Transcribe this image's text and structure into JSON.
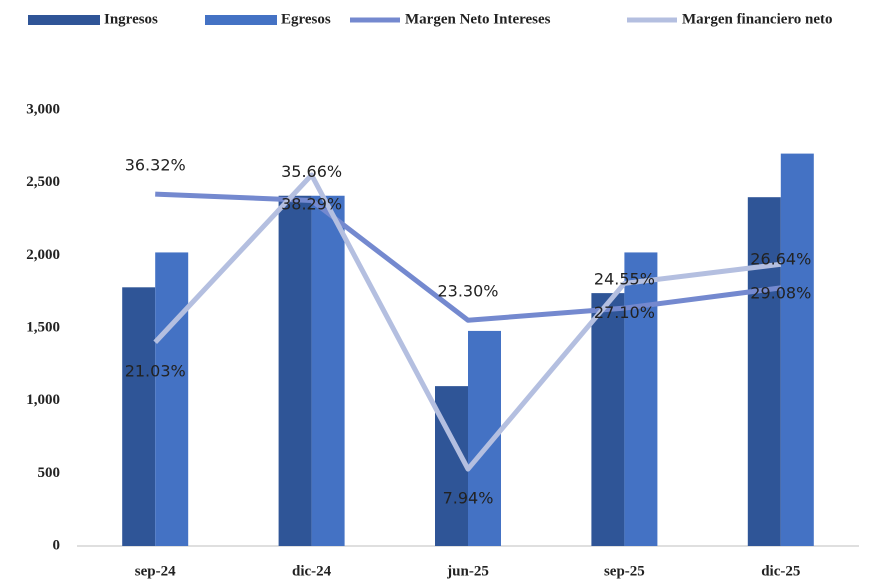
{
  "chart_data": {
    "type": "bar",
    "categories": [
      "sep-24",
      "dic-24",
      "jun-25",
      "sep-25",
      "dic-25"
    ],
    "series": [
      {
        "name": "Ingresos",
        "type": "bar",
        "color": "#2f5597",
        "values": [
          1780,
          2410,
          1100,
          1740,
          2400
        ]
      },
      {
        "name": "Egresos",
        "type": "bar",
        "color": "#4472c4",
        "values": [
          2020,
          2410,
          1480,
          2020,
          2700
        ]
      },
      {
        "name": "Margen Neto Intereses",
        "type": "line",
        "axis": "y2",
        "color": "#7489cf",
        "values": [
          36.32,
          35.66,
          23.3,
          24.55,
          26.64
        ],
        "value_labels": [
          "36.32%",
          "35.66%",
          "23.30%",
          "24.55%",
          "26.64%"
        ]
      },
      {
        "name": "Margen financiero neto",
        "type": "line",
        "axis": "y2",
        "color": "#b4bfe0",
        "values": [
          21.03,
          38.29,
          7.94,
          27.1,
          29.08
        ],
        "value_labels": [
          "21.03%",
          "38.29%",
          "7.94%",
          "27.10%",
          "29.08%"
        ]
      }
    ],
    "ylim": [
      0,
      3000
    ],
    "yticks": [
      0,
      500,
      {
        "value": 1000,
        "label": "1,000"
      },
      {
        "value": 1500,
        "label": "1,500"
      },
      {
        "value": 2000,
        "label": "2,000"
      },
      {
        "value": 2500,
        "label": "2,500"
      },
      {
        "value": 3000,
        "label": "3,000"
      }
    ],
    "y2lim": [
      0,
      45
    ],
    "grid": false,
    "legend": "top"
  }
}
